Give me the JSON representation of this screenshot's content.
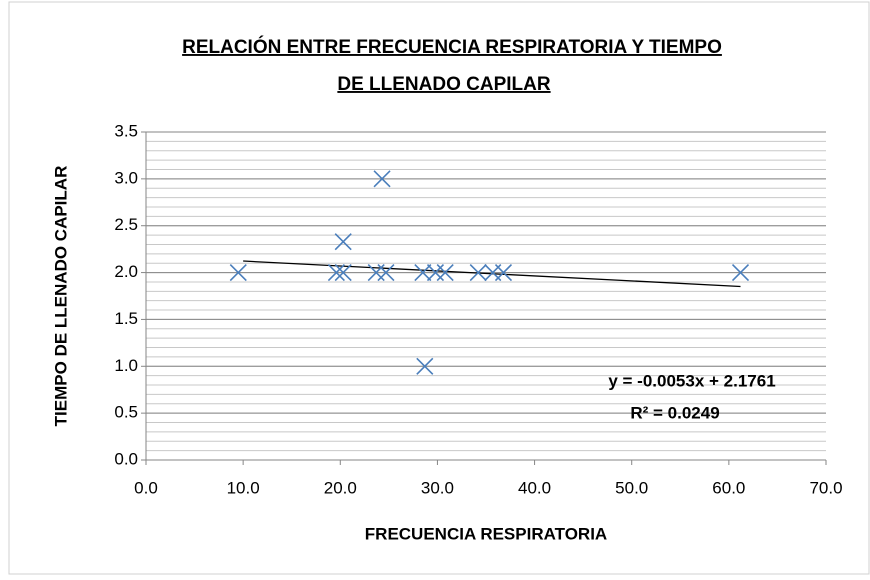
{
  "chart_data": {
    "type": "scatter",
    "title": [
      "RELACIÓN ENTRE FRECUENCIA RESPIRATORIA Y TIEMPO",
      "DE LLENADO CAPILAR"
    ],
    "x_label": "FRECUENCIA RESPIRATORIA",
    "y_label": "TIEMPO DE LLENADO CAPILAR",
    "series": [
      {
        "name": "TIEMPO DE LLENADO CAPILAR",
        "color": "#4a7ebb",
        "x": [
          9.5,
          19.6,
          20.3,
          20.3,
          23.7,
          24.7,
          24.3,
          28.5,
          29.8,
          30.8,
          28.7,
          34.2,
          35.7,
          36.8,
          61.2
        ],
        "values": [
          2.0,
          2.0,
          2.0,
          2.33,
          2.0,
          2.0,
          3.0,
          2.0,
          2.0,
          2.0,
          1.0,
          2.0,
          2.0,
          2.0,
          2.0
        ]
      }
    ],
    "trendline": {
      "slope": -0.0053,
      "intercept": 2.1761,
      "x": [
        10,
        61.2
      ],
      "color": "#000000",
      "labels": [
        "y = -0.0053x + 2.1761",
        "R² = 0.0249"
      ]
    },
    "xlim": [
      0,
      70
    ],
    "xticks": [
      {
        "value": 0,
        "label": "0.0"
      },
      {
        "value": 10,
        "label": "10.0"
      },
      {
        "value": 20,
        "label": "20.0"
      },
      {
        "value": 30,
        "label": "30.0"
      },
      {
        "value": 40,
        "label": "40.0"
      },
      {
        "value": 50,
        "label": "50.0"
      },
      {
        "value": 60,
        "label": "60.0"
      },
      {
        "value": 70,
        "label": "70.0"
      }
    ],
    "ylim": [
      0,
      3.5
    ],
    "yticks": [
      {
        "value": 0,
        "label": "0.0"
      },
      {
        "value": 0.5,
        "label": "0.5"
      },
      {
        "value": 1,
        "label": "1.0"
      },
      {
        "value": 1.5,
        "label": "1.5"
      },
      {
        "value": 2,
        "label": "2.0"
      },
      {
        "value": 2.5,
        "label": "2.5"
      },
      {
        "value": 3,
        "label": "3.0"
      },
      {
        "value": 3.5,
        "label": "3.5"
      }
    ],
    "grid": true,
    "minor_grid": 0.1
  }
}
